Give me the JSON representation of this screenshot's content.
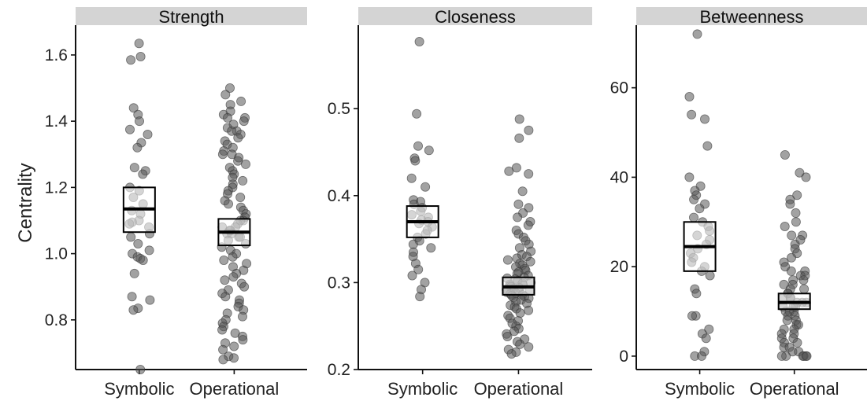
{
  "ylabel": "Centrality",
  "colors": {
    "point": "#555555",
    "strip": "#d4d4d4"
  },
  "chart_data": [
    {
      "type": "scatter",
      "title": "Strength",
      "categories": [
        "Symbolic",
        "Operational"
      ],
      "ylim": [
        0.65,
        1.69
      ],
      "yticks": [
        0.8,
        1.0,
        1.2,
        1.4,
        1.6
      ],
      "tick_labels": [
        "0.8",
        "1.0",
        "1.2",
        "1.4",
        "1.6"
      ],
      "boxes": [
        {
          "low": 1.065,
          "median": 1.135,
          "high": 1.2
        },
        {
          "low": 1.025,
          "median": 1.065,
          "high": 1.105
        }
      ],
      "series": [
        {
          "category": "Symbolic",
          "values": [
            1.635,
            1.595,
            1.585,
            1.44,
            1.42,
            1.4,
            1.375,
            1.36,
            1.335,
            1.32,
            1.26,
            1.25,
            1.24,
            1.2,
            1.19,
            1.17,
            1.15,
            1.13,
            1.12,
            1.1,
            1.095,
            1.09,
            1.08,
            1.06,
            1.05,
            1.03,
            1.01,
            1.0,
            0.99,
            0.985,
            0.98,
            0.94,
            0.87,
            0.86,
            0.835,
            0.83,
            0.65
          ]
        },
        {
          "category": "Operational",
          "values": [
            1.5,
            1.48,
            1.46,
            1.45,
            1.43,
            1.42,
            1.41,
            1.41,
            1.4,
            1.39,
            1.38,
            1.37,
            1.37,
            1.36,
            1.35,
            1.34,
            1.33,
            1.32,
            1.31,
            1.3,
            1.3,
            1.29,
            1.28,
            1.27,
            1.26,
            1.25,
            1.24,
            1.23,
            1.22,
            1.21,
            1.2,
            1.19,
            1.18,
            1.17,
            1.16,
            1.15,
            1.14,
            1.13,
            1.12,
            1.11,
            1.1,
            1.1,
            1.09,
            1.08,
            1.08,
            1.07,
            1.07,
            1.06,
            1.06,
            1.05,
            1.05,
            1.04,
            1.03,
            1.02,
            1.01,
            1.0,
            0.99,
            0.98,
            0.97,
            0.96,
            0.95,
            0.94,
            0.93,
            0.92,
            0.91,
            0.9,
            0.89,
            0.88,
            0.87,
            0.86,
            0.85,
            0.84,
            0.83,
            0.82,
            0.81,
            0.8,
            0.79,
            0.78,
            0.77,
            0.76,
            0.75,
            0.74,
            0.73,
            0.72,
            0.71,
            0.69,
            0.685,
            0.68
          ]
        }
      ]
    },
    {
      "type": "scatter",
      "title": "Closeness",
      "categories": [
        "Symbolic",
        "Operational"
      ],
      "ylim": [
        0.2,
        0.596
      ],
      "yticks": [
        0.2,
        0.3,
        0.4,
        0.5
      ],
      "tick_labels": [
        "0.2",
        "0.3",
        "0.4",
        "0.5"
      ],
      "boxes": [
        {
          "low": 0.352,
          "median": 0.37,
          "high": 0.388
        },
        {
          "low": 0.286,
          "median": 0.295,
          "high": 0.306
        }
      ],
      "series": [
        {
          "category": "Symbolic",
          "values": [
            0.577,
            0.494,
            0.457,
            0.452,
            0.443,
            0.44,
            0.42,
            0.41,
            0.395,
            0.393,
            0.39,
            0.386,
            0.382,
            0.378,
            0.375,
            0.372,
            0.37,
            0.368,
            0.364,
            0.36,
            0.356,
            0.352,
            0.348,
            0.344,
            0.34,
            0.335,
            0.33,
            0.322,
            0.315,
            0.308,
            0.3,
            0.292,
            0.284
          ]
        },
        {
          "category": "Operational",
          "values": [
            0.488,
            0.475,
            0.466,
            0.432,
            0.428,
            0.425,
            0.405,
            0.39,
            0.386,
            0.38,
            0.375,
            0.37,
            0.366,
            0.36,
            0.356,
            0.352,
            0.348,
            0.344,
            0.34,
            0.336,
            0.332,
            0.33,
            0.328,
            0.326,
            0.324,
            0.322,
            0.32,
            0.318,
            0.316,
            0.314,
            0.312,
            0.31,
            0.308,
            0.306,
            0.305,
            0.304,
            0.302,
            0.3,
            0.299,
            0.298,
            0.297,
            0.296,
            0.295,
            0.294,
            0.293,
            0.292,
            0.291,
            0.29,
            0.289,
            0.288,
            0.287,
            0.286,
            0.285,
            0.284,
            0.283,
            0.282,
            0.28,
            0.278,
            0.276,
            0.274,
            0.272,
            0.27,
            0.268,
            0.265,
            0.262,
            0.259,
            0.256,
            0.253,
            0.25,
            0.247,
            0.244,
            0.241,
            0.238,
            0.235,
            0.232,
            0.229,
            0.226,
            0.223,
            0.22,
            0.218
          ]
        }
      ]
    },
    {
      "type": "scatter",
      "title": "Betweenness",
      "categories": [
        "Symbolic",
        "Operational"
      ],
      "ylim": [
        -3,
        74
      ],
      "yticks": [
        0,
        20,
        40,
        60
      ],
      "tick_labels": [
        "0",
        "20",
        "40",
        "60"
      ],
      "boxes": [
        {
          "low": 19,
          "median": 24.5,
          "high": 30
        },
        {
          "low": 10.5,
          "median": 12,
          "high": 14
        }
      ],
      "series": [
        {
          "category": "Symbolic",
          "values": [
            72,
            58,
            54,
            53,
            47,
            40,
            38,
            37,
            36,
            35,
            34,
            33,
            31,
            30,
            29,
            28,
            27,
            26,
            25,
            24,
            23,
            22,
            21,
            20,
            19,
            18,
            15,
            14,
            9,
            9,
            6,
            5,
            4,
            1,
            0,
            0
          ]
        },
        {
          "category": "Operational",
          "values": [
            45,
            41,
            40,
            36,
            35,
            34,
            32,
            30,
            29,
            27,
            27,
            26,
            25,
            24,
            23,
            22,
            21,
            20,
            19,
            19,
            18,
            18,
            17,
            17,
            16,
            16,
            15,
            15,
            14,
            14,
            13,
            13,
            13,
            12,
            12,
            12,
            11,
            11,
            11,
            10,
            10,
            10,
            9,
            9,
            8,
            8,
            7,
            7,
            6,
            6,
            5,
            5,
            4,
            4,
            3,
            3,
            2,
            2,
            1,
            1,
            0,
            0,
            0,
            0,
            0,
            0
          ]
        }
      ]
    }
  ]
}
